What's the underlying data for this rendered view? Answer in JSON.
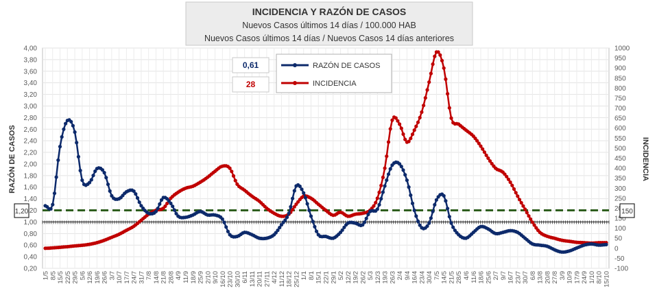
{
  "header": {
    "title": "INCIDENCIA Y RAZÓN DE CASOS",
    "subtitle1": "Nuevos Casos últimos 14 días / 100.000 HAB",
    "subtitle2": "Nuevos Casos últimos 14 días / Nuevos Casos 14 días anteriores"
  },
  "indicators": {
    "razon_value": "0,61",
    "incidencia_value": "28"
  },
  "threshold_labels": {
    "razon": "1,20",
    "incidencia": "150"
  },
  "colors": {
    "razon": "#0d2a6b",
    "incidencia": "#c00000",
    "threshold": "#2e5e1e"
  },
  "chart_data": {
    "type": "line",
    "title": "INCIDENCIA Y RAZÓN DE CASOS",
    "ylabel": "RAZÓN DE CASOS",
    "y2label": "INCIDENCIA",
    "ylim": [
      0.2,
      4.0
    ],
    "y2lim": [
      -100,
      1000
    ],
    "yticks": [
      "0,20",
      "0,40",
      "0,60",
      "0,80",
      "1,00",
      "1,20",
      "1,40",
      "1,60",
      "1,80",
      "2,00",
      "2,20",
      "2,40",
      "2,60",
      "2,80",
      "3,00",
      "3,20",
      "3,40",
      "3,60",
      "3,80",
      "4,00"
    ],
    "y2ticks": [
      "-100",
      "-50",
      "0",
      "50",
      "100",
      "150",
      "200",
      "250",
      "300",
      "350",
      "400",
      "450",
      "500",
      "550",
      "600",
      "650",
      "700",
      "750",
      "800",
      "850",
      "900",
      "950",
      "1000"
    ],
    "reference_line": {
      "axis": "left",
      "value": 1.2
    },
    "legend": [
      "RAZÓN DE CASOS",
      "INCIDENCIA"
    ],
    "categories": [
      "1/5",
      "8/5",
      "15/5",
      "22/5",
      "29/5",
      "5/6",
      "12/6",
      "19/6",
      "26/6",
      "3/7",
      "10/7",
      "17/7",
      "24/7",
      "31/7",
      "7/8",
      "14/8",
      "21/8",
      "28/8",
      "4/9",
      "11/9",
      "18/9",
      "25/9",
      "2/10",
      "9/10",
      "16/10",
      "23/10",
      "30/10",
      "6/11",
      "13/11",
      "20/11",
      "27/11",
      "4/12",
      "11/12",
      "18/12",
      "25/12",
      "1/1",
      "8/1",
      "15/1",
      "22/1",
      "29/1",
      "5/2",
      "12/2",
      "19/2",
      "26/2",
      "5/3",
      "12/3",
      "19/3",
      "26/3",
      "2/4",
      "9/4",
      "16/4",
      "23/4",
      "30/4",
      "7/5",
      "14/5",
      "21/5",
      "28/5",
      "4/6",
      "11/6",
      "18/6",
      "25/6",
      "2/7",
      "9/7",
      "16/7",
      "23/7",
      "30/7",
      "6/8",
      "13/8",
      "20/8",
      "27/8",
      "3/9",
      "10/9",
      "17/9",
      "24/9",
      "1/10",
      "8/10",
      "15/10"
    ],
    "series": [
      {
        "name": "RAZÓN DE CASOS",
        "axis": "left",
        "values": [
          1.28,
          1.3,
          2.3,
          2.75,
          2.55,
          1.72,
          1.68,
          1.92,
          1.85,
          1.45,
          1.4,
          1.52,
          1.53,
          1.28,
          1.15,
          1.18,
          1.42,
          1.32,
          1.1,
          1.08,
          1.12,
          1.18,
          1.12,
          1.12,
          1.05,
          0.78,
          0.75,
          0.82,
          0.78,
          0.72,
          0.72,
          0.78,
          0.95,
          1.15,
          1.62,
          1.5,
          1.1,
          0.78,
          0.75,
          0.72,
          0.82,
          0.98,
          0.98,
          0.95,
          1.18,
          1.22,
          1.62,
          1.98,
          2.0,
          1.72,
          1.2,
          0.9,
          0.98,
          1.38,
          1.45,
          0.98,
          0.78,
          0.72,
          0.82,
          0.92,
          0.88,
          0.8,
          0.82,
          0.85,
          0.82,
          0.72,
          0.62,
          0.6,
          0.58,
          0.52,
          0.48,
          0.5,
          0.55,
          0.6,
          0.62,
          0.6,
          0.61
        ]
      },
      {
        "name": "INCIDENCIA",
        "axis": "right",
        "values": [
          0,
          2,
          5,
          8,
          12,
          15,
          20,
          28,
          40,
          55,
          70,
          90,
          110,
          140,
          170,
          190,
          200,
          250,
          280,
          300,
          310,
          330,
          355,
          385,
          410,
          400,
          320,
          290,
          260,
          235,
          200,
          175,
          160,
          170,
          220,
          260,
          250,
          220,
          190,
          165,
          180,
          160,
          170,
          175,
          190,
          250,
          400,
          640,
          620,
          530,
          590,
          680,
          830,
          980,
          900,
          650,
          620,
          590,
          560,
          510,
          450,
          400,
          380,
          330,
          260,
          195,
          130,
          80,
          60,
          50,
          40,
          35,
          30,
          28,
          26,
          28,
          28
        ]
      }
    ]
  }
}
